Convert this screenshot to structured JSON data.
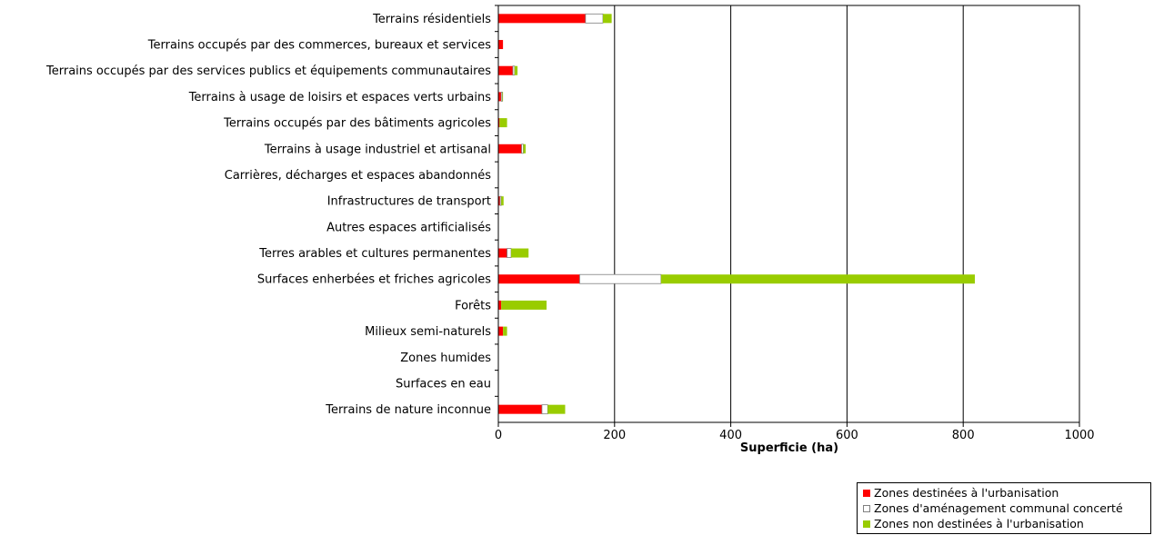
{
  "chart_data": {
    "type": "bar",
    "orientation": "horizontal",
    "stacked": true,
    "title": "",
    "xlabel": "Superficie (ha)",
    "ylabel": "",
    "xlim": [
      0,
      1000
    ],
    "xticks": [
      0,
      200,
      400,
      600,
      800,
      1000
    ],
    "grid": "vertical",
    "legend_position": "bottom-right",
    "categories": [
      "Terrains résidentiels",
      "Terrains occupés par des commerces, bureaux et services",
      "Terrains occupés par des services publics et équipements communautaires",
      "Terrains à usage de loisirs et espaces verts urbains",
      "Terrains occupés par des bâtiments agricoles",
      "Terrains à usage industriel et artisanal",
      "Carrières, décharges et espaces abandonnés",
      "Infrastructures de transport",
      "Autres espaces artificialisés",
      "Terres arables et cultures permanentes",
      "Surfaces enherbées et friches agricoles",
      "Forêts",
      "Milieux semi-naturels",
      "Zones humides",
      "Surfaces en eau",
      "Terrains de nature inconnue"
    ],
    "series": [
      {
        "name": "Zones destinées à l'urbanisation",
        "color": "#ff0000",
        "values": [
          150,
          8,
          25,
          5,
          2,
          40,
          0,
          3,
          0,
          15,
          140,
          5,
          8,
          0,
          0,
          75
        ]
      },
      {
        "name": "Zones d'aménagement communal concerté",
        "color": "#ffffff",
        "values": [
          30,
          0,
          3,
          2,
          0,
          3,
          0,
          2,
          0,
          7,
          140,
          0,
          0,
          0,
          0,
          10
        ]
      },
      {
        "name": "Zones non destinées à l'urbanisation",
        "color": "#99cc00",
        "values": [
          15,
          0,
          5,
          1,
          13,
          4,
          0,
          4,
          0,
          30,
          540,
          78,
          7,
          0,
          0,
          30
        ]
      }
    ]
  }
}
